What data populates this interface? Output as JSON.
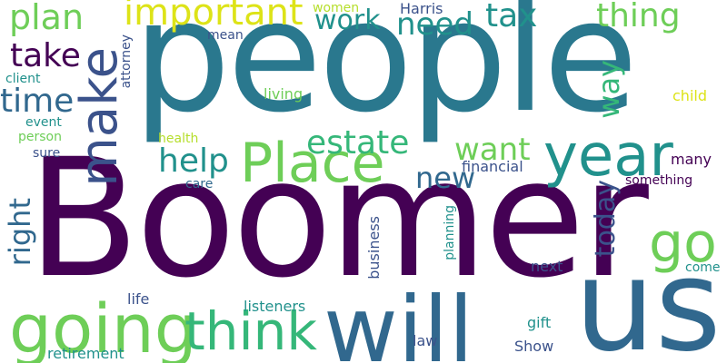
{
  "palette": {
    "dark_purple": "#440154",
    "blue": "#31688e",
    "teal": "#21918c",
    "green": "#35b779",
    "light_green": "#6ece58",
    "yellow": "#b5de2b",
    "bright_yellow": "#dde318",
    "indigo": "#3b528b"
  },
  "words": {
    "boomer": "Boomer",
    "people": "people",
    "us": "us",
    "will": "will",
    "going": "going",
    "think": "think",
    "place": "Place",
    "year": "year",
    "make": "make",
    "go": "go",
    "important": "important",
    "plan": "plan",
    "take": "take",
    "time": "time",
    "right": "right",
    "work": "work",
    "need": "need",
    "tax": "tax",
    "thing": "thing",
    "estate": "estate",
    "want": "want",
    "help": "help",
    "new": "new",
    "way": "way",
    "today": "today",
    "harris": "Harris",
    "women": "women",
    "mean": "mean",
    "attorney": "attorney",
    "client": "client",
    "living": "living",
    "event": "event",
    "person": "person",
    "health": "health",
    "sure": "sure",
    "care": "care",
    "financial": "financial",
    "something": "something",
    "many": "many",
    "child": "child",
    "business": "business",
    "planning": "planning",
    "next": "next",
    "come": "come",
    "life": "life",
    "listeners": "listeners",
    "gift": "gift",
    "law": "law",
    "show": "Show",
    "retirement": "retirement"
  }
}
